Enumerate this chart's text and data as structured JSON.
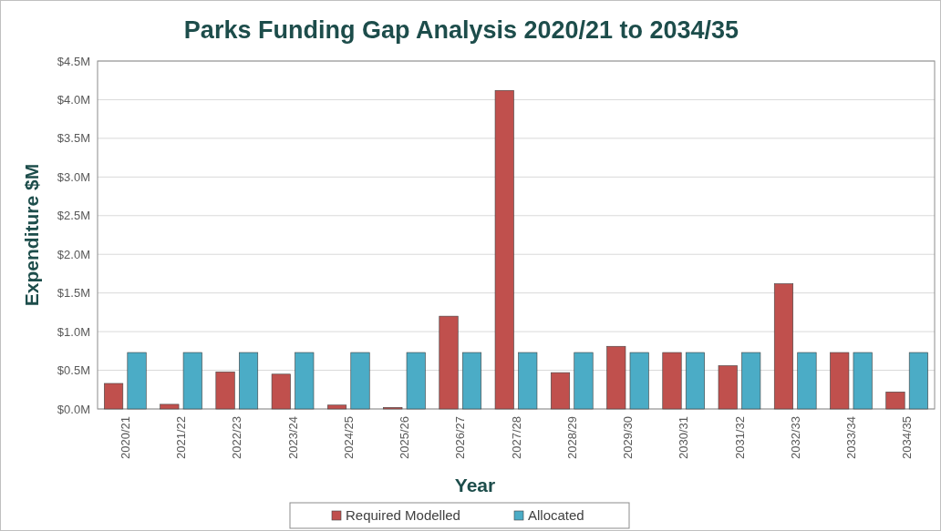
{
  "chart_data": {
    "type": "bar",
    "title": "Parks Funding Gap Analysis 2020/21 to 2034/35",
    "xlabel": "Year",
    "ylabel": "Expenditure $M",
    "categories": [
      "2020/21",
      "2021/22",
      "2022/23",
      "2023/24",
      "2024/25",
      "2025/26",
      "2026/27",
      "2027/28",
      "2028/29",
      "2029/30",
      "2030/31",
      "2031/32",
      "2032/33",
      "2033/34",
      "2034/35"
    ],
    "series": [
      {
        "name": "Required Modelled",
        "color": "#c0504d",
        "values": [
          0.33,
          0.06,
          0.48,
          0.45,
          0.05,
          0.02,
          1.2,
          4.12,
          0.47,
          0.81,
          0.73,
          0.56,
          1.62,
          0.73,
          0.22
        ]
      },
      {
        "name": "Allocated",
        "color": "#4bacc6",
        "values": [
          0.73,
          0.73,
          0.73,
          0.73,
          0.73,
          0.73,
          0.73,
          0.73,
          0.73,
          0.73,
          0.73,
          0.73,
          0.73,
          0.73,
          0.73
        ]
      }
    ],
    "ylim": [
      0,
      4.5
    ],
    "yticks": [
      {
        "value": 0,
        "label": "$0.0M"
      },
      {
        "value": 0.5,
        "label": "$0.5M"
      },
      {
        "value": 1,
        "label": "$1.0M"
      },
      {
        "value": 1.5,
        "label": "$1.5M"
      },
      {
        "value": 2,
        "label": "$2.0M"
      },
      {
        "value": 2.5,
        "label": "$2.5M"
      },
      {
        "value": 3,
        "label": "$3.0M"
      },
      {
        "value": 3.5,
        "label": "$3.5M"
      },
      {
        "value": 4,
        "label": "$4.0M"
      },
      {
        "value": 4.5,
        "label": "$4.5M"
      }
    ],
    "grid": "y",
    "legend": "bottom"
  }
}
